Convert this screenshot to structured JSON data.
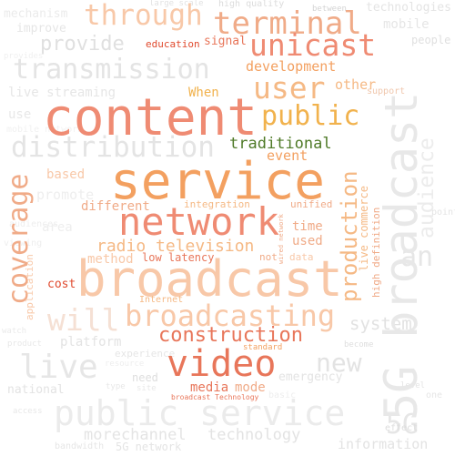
{
  "words": {
    "content": "content",
    "service": "service",
    "broadcast_main": "broadcast",
    "broadcast_right": "5G broadcast",
    "network": "network",
    "terminal": "terminal",
    "through": "through",
    "unicast": "unicast",
    "transmission": "transmission",
    "user": "user",
    "public": "public",
    "distribution": "distribution",
    "coverage": "coverage",
    "production": "production",
    "audience": "audience",
    "public_service": "public service",
    "video": "video",
    "construction": "construction",
    "broadcasting": "broadcasting",
    "will": "will",
    "live": "live",
    "live_streaming": "live streaming",
    "new": "new",
    "system": "system",
    "radio_television": "radio television",
    "traditional": "traditional",
    "provide": "provide",
    "development": "development",
    "when": "When",
    "event": "event",
    "other": "other",
    "signal": "signal",
    "education": "education",
    "integration": "integration",
    "unified": "unified",
    "different": "different",
    "time": "time",
    "used": "used",
    "low_latency": "low latency",
    "not": "not",
    "data": "data",
    "method": "method",
    "cost": "cost",
    "based": "based",
    "promote": "promote",
    "area": "area",
    "application": "application",
    "internet": "Internet",
    "platform": "platform",
    "technology": "technology",
    "media": "media",
    "mode": "mode",
    "standard": "standard",
    "broadcast_technology": "broadcast Technology",
    "live_commerce": "live commerce",
    "high_definition": "high definition",
    "wired_network": "wired network",
    "five_g": "5G",
    "an": "an",
    "morechannel": "morechannel",
    "information": "information",
    "national": "national",
    "need": "need",
    "emergency": "emergency",
    "mechanism": "mechanism",
    "improve": "improve",
    "high_quality": "high quality",
    "large_scale": "large scale",
    "between": "between",
    "technologies": "technologies",
    "mobile": "mobile",
    "people": "people",
    "support": "support",
    "experience": "experience",
    "resource": "resource",
    "become": "become",
    "product": "product",
    "use": "use",
    "one": "one",
    "access": "access",
    "point": "point",
    "basic": "basic",
    "type": "type",
    "site": "site",
    "bandwidth": "bandwidth",
    "5g_network": "5G network",
    "provides": "provides",
    "mobile_network": "mobile network",
    "audiences": "audiences",
    "viewing": "viewing",
    "watch": "watch",
    "effect": "effect",
    "level": "level"
  },
  "colors": {
    "deep_orange": "#e8765a",
    "salmon": "#ef8b73",
    "orange": "#f3a060",
    "light_orange": "#f5b985",
    "peach": "#f8c8a8",
    "pale_peach": "#fbdccb",
    "pale_grey": "#f0f0f0",
    "light_grey": "#e4e4e4",
    "grey": "#d8d8d8",
    "red": "#e04a2e",
    "dark_green": "#4f7a28",
    "gold": "#f1b24d"
  }
}
